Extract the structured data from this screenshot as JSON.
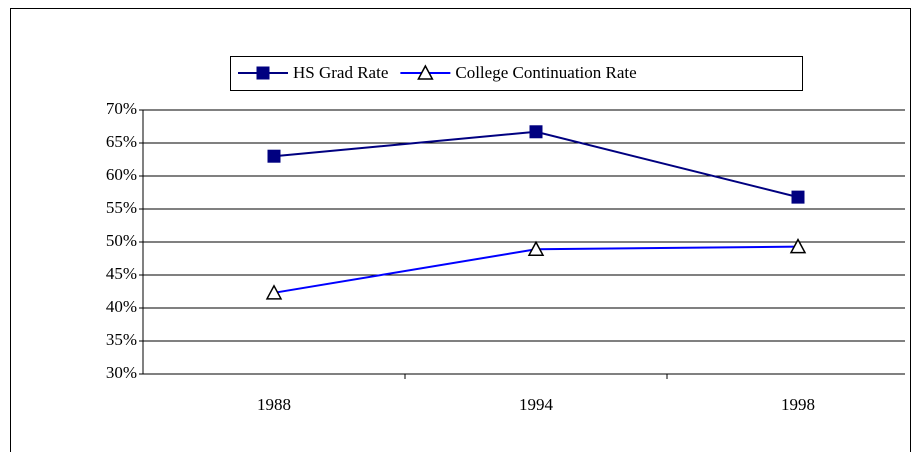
{
  "chart_data": {
    "type": "line",
    "categories": [
      "1988",
      "1994",
      "1998"
    ],
    "series": [
      {
        "name": "HS Grad Rate",
        "color": "#000080",
        "marker": "square",
        "values": [
          63,
          66.7,
          56.8
        ]
      },
      {
        "name": "College Continuation Rate",
        "color": "#0000ff",
        "marker": "triangle",
        "values": [
          42.3,
          48.9,
          49.3
        ]
      }
    ],
    "ylim": [
      30,
      70
    ],
    "yticks": [
      {
        "value": 30,
        "label": "30%"
      },
      {
        "value": 35,
        "label": "35%"
      },
      {
        "value": 40,
        "label": "40%"
      },
      {
        "value": 45,
        "label": "45%"
      },
      {
        "value": 50,
        "label": "50%"
      },
      {
        "value": 55,
        "label": "55%"
      },
      {
        "value": 60,
        "label": "60%"
      },
      {
        "value": 65,
        "label": "65%"
      },
      {
        "value": 70,
        "label": "70%"
      }
    ],
    "grid": true,
    "legend": "top"
  }
}
